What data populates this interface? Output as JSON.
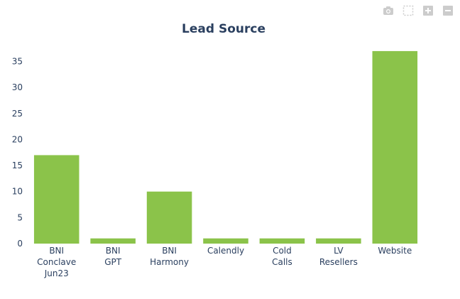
{
  "toolbar": {
    "icons": [
      "camera-icon",
      "box-select-icon",
      "zoom-in-icon",
      "zoom-out-icon"
    ]
  },
  "colors": {
    "bar": "#8bc34a",
    "text": "#2a3f5f",
    "axis": "#444444",
    "modebar_icon": "#cccccc"
  },
  "chart_data": {
    "type": "bar",
    "title": "Lead Source",
    "xlabel": "",
    "ylabel": "",
    "categories": [
      "BNI Conclave Jun23",
      "BNI GPT",
      "BNI Harmony",
      "Calendly",
      "Cold Calls",
      "LV Resellers",
      "Website"
    ],
    "category_lines": [
      [
        "BNI",
        "Conclave",
        "Jun23"
      ],
      [
        "BNI",
        "GPT"
      ],
      [
        "BNI",
        "Harmony"
      ],
      [
        "Calendly"
      ],
      [
        "Cold",
        "Calls"
      ],
      [
        "LV",
        "Resellers"
      ],
      [
        "Website"
      ]
    ],
    "values": [
      17,
      1,
      10,
      1,
      1,
      1,
      37
    ],
    "ylim": [
      0,
      38.9
    ],
    "yticks": [
      0,
      5,
      10,
      15,
      20,
      25,
      30,
      35
    ],
    "grid": false,
    "legend": "none"
  }
}
